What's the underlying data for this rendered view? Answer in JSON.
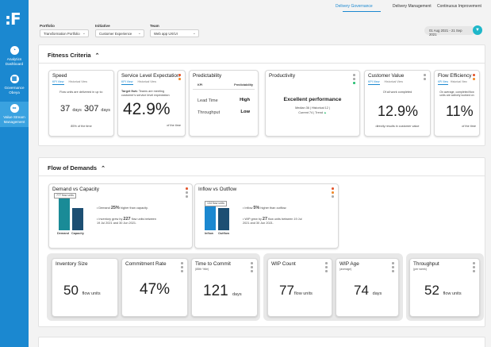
{
  "sidebar": {
    "logo": ":F",
    "items": [
      {
        "label": "Analytics Dashboard",
        "icon": "gauge-icon"
      },
      {
        "label": "Governance Obeya",
        "icon": "grid-icon"
      },
      {
        "label": "Value Stream Management",
        "icon": "infinity-icon"
      }
    ]
  },
  "topnav": {
    "tabs": [
      "Delivery Governance",
      "Delivery Management",
      "Continuous Improvement"
    ],
    "active": "Delivery Governance"
  },
  "filters": {
    "portfolio": {
      "label": "Portfolio",
      "value": "Transformation Portfolio"
    },
    "initiative": {
      "label": "Initiative",
      "value": "Customer Experience"
    },
    "team": {
      "label": "Team",
      "value": "Web app UX/UI"
    },
    "date_range": "01 Aug 2021 - 21 Sep 2021"
  },
  "fitness": {
    "title": "Fitness Criteria",
    "speed": {
      "title": "Speed",
      "tab1": "KPI View",
      "tab2": "Historical View",
      "desc": "Flow units are delivered in up to:",
      "v1": "37",
      "u1": "days",
      "v2": "307",
      "u2": "days",
      "foot": "85% of the time",
      "v1_top": "x%"
    },
    "sle": {
      "title": "Service Level Expectation",
      "tab1": "KPI View",
      "tab2": "Historical View",
      "desc_bold": "Target 9wk:",
      "desc": "Teams are meeting customer's service level expectation",
      "value": "42.9%",
      "foot": "of the time"
    },
    "pred": {
      "title": "Predictability",
      "h1": "KPI",
      "h2": "Predictability",
      "r1": "Lead Time",
      "r1v": "High",
      "r2": "Throughput",
      "r2v": "Low"
    },
    "prod": {
      "title": "Productivity",
      "headline": "Excellent performance",
      "line1": "Median 36 | Historical 12 |",
      "line2": "Current 74 | Trend"
    },
    "cv": {
      "title": "Customer Value",
      "tab1": "KPI View",
      "tab2": "Historical View",
      "desc": "Of all work completed",
      "value": "12.9%",
      "foot": "directly results in customer value"
    },
    "fe": {
      "title": "Flow Efficiency",
      "tab1": "KPI View",
      "tab2": "Historical View",
      "desc": "On average, completed flow units are actively worked on",
      "value": "11%",
      "foot": "of the time"
    }
  },
  "flow": {
    "title": "Flow of Demands",
    "dc": {
      "title": "Demand vs Capacity",
      "tooltip": "777 flow units",
      "lbl1": "Demand",
      "lbl2": "Capacity",
      "b1a": "Demand",
      "b1b": "25%",
      "b1c": "higher than capacity.",
      "b2a": "Inventory grew by",
      "b2b": "227",
      "b2c": "flow units between 19 Jul 2021 and 30 Jun 2021."
    },
    "io": {
      "title": "Inflow vs Outflow",
      "tooltip": "134 flow units",
      "lbl1": "Inflow",
      "lbl2": "Outflow",
      "b1a": "Inflow",
      "b1b": "5%",
      "b1c": "higher than outflow.",
      "b2a": "WIP grew by",
      "b2b": "27",
      "b2c": "flow units between 19 Jul 2021 and 30 Jun 2021."
    },
    "metrics": [
      {
        "title": "Inventory Size",
        "sub": "",
        "value": "50",
        "unit": "flow units"
      },
      {
        "title": "Commitment Rate",
        "sub": "",
        "value": "47%",
        "unit": ""
      },
      {
        "title": "Time to Commit",
        "sub": "(85th %ile)",
        "value": "121",
        "unit": "days"
      },
      {
        "title": "WIP Count",
        "sub": "",
        "value": "77",
        "unit": "flow units"
      },
      {
        "title": "WIP Age",
        "sub": "(average)",
        "value": "74",
        "unit": "days"
      },
      {
        "title": "Throughput",
        "sub": "(per week)",
        "value": "52",
        "unit": "flow units"
      }
    ]
  },
  "colors": {
    "brand": "#1b88d0",
    "teal": "#1a8b97",
    "navy": "#1d4f73",
    "orange": "#f08a2c",
    "red": "#e4572e",
    "green": "#2bbf74",
    "grey_dot": "#aaaaaa"
  }
}
